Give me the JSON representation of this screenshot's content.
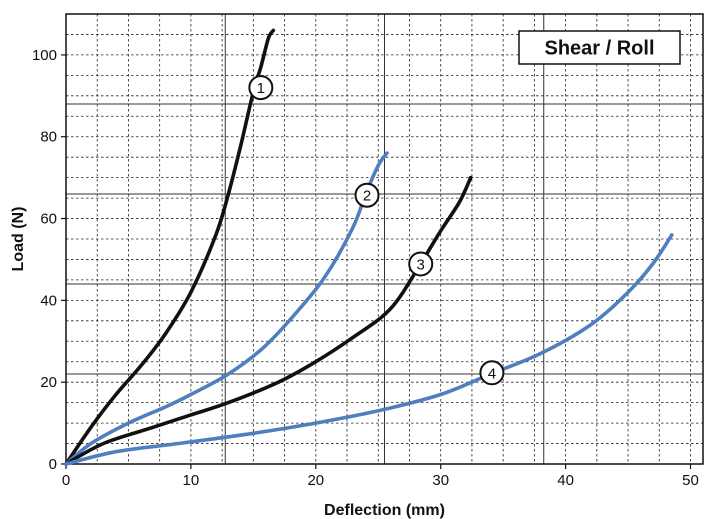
{
  "chart_data": {
    "type": "line",
    "title": "Shear / Roll",
    "xlabel": "Deflection (mm)",
    "ylabel": "Load (N)",
    "xlim": [
      0,
      51
    ],
    "ylim": [
      0,
      110
    ],
    "xticks": [
      0,
      10,
      20,
      30,
      40,
      50
    ],
    "yticks": [
      0,
      20,
      40,
      60,
      80,
      100
    ],
    "grid": true,
    "series": [
      {
        "name": "1",
        "color": "#111111",
        "points": [
          [
            0,
            0
          ],
          [
            2,
            9
          ],
          [
            4,
            17
          ],
          [
            6,
            24
          ],
          [
            8,
            32
          ],
          [
            10,
            42
          ],
          [
            12,
            56
          ],
          [
            13,
            66
          ],
          [
            14,
            78
          ],
          [
            15,
            91
          ],
          [
            15.6,
            97
          ],
          [
            16.2,
            104
          ],
          [
            16.6,
            106
          ]
        ]
      },
      {
        "name": "2",
        "color": "#4f7fbf",
        "points": [
          [
            0,
            0
          ],
          [
            2,
            5
          ],
          [
            5,
            10
          ],
          [
            8,
            14
          ],
          [
            10,
            17
          ],
          [
            13,
            22
          ],
          [
            16,
            29
          ],
          [
            19,
            39
          ],
          [
            21,
            47
          ],
          [
            23,
            58
          ],
          [
            24,
            66
          ],
          [
            25,
            73
          ],
          [
            25.7,
            76
          ]
        ]
      },
      {
        "name": "3",
        "color": "#111111",
        "points": [
          [
            0,
            0
          ],
          [
            3,
            5
          ],
          [
            7,
            9
          ],
          [
            10,
            12
          ],
          [
            13,
            15
          ],
          [
            17,
            20
          ],
          [
            20,
            25
          ],
          [
            23,
            31
          ],
          [
            26,
            38
          ],
          [
            28.4,
            49
          ],
          [
            30,
            57
          ],
          [
            31.5,
            64
          ],
          [
            32.4,
            70
          ]
        ]
      },
      {
        "name": "4",
        "color": "#4f7fbf",
        "points": [
          [
            0,
            0
          ],
          [
            4,
            3
          ],
          [
            9,
            5
          ],
          [
            15,
            7.5
          ],
          [
            20,
            10
          ],
          [
            25,
            13
          ],
          [
            30,
            17
          ],
          [
            34,
            22
          ],
          [
            38,
            27
          ],
          [
            42,
            34
          ],
          [
            45,
            42
          ],
          [
            47,
            49
          ],
          [
            48.5,
            56
          ]
        ]
      }
    ],
    "annotations": [
      {
        "label": "1",
        "x": 15.6,
        "y": 92
      },
      {
        "label": "2",
        "x": 24.1,
        "y": 65.7
      },
      {
        "label": "3",
        "x": 28.4,
        "y": 48.9
      },
      {
        "label": "4",
        "x": 34.1,
        "y": 22.3
      }
    ]
  }
}
